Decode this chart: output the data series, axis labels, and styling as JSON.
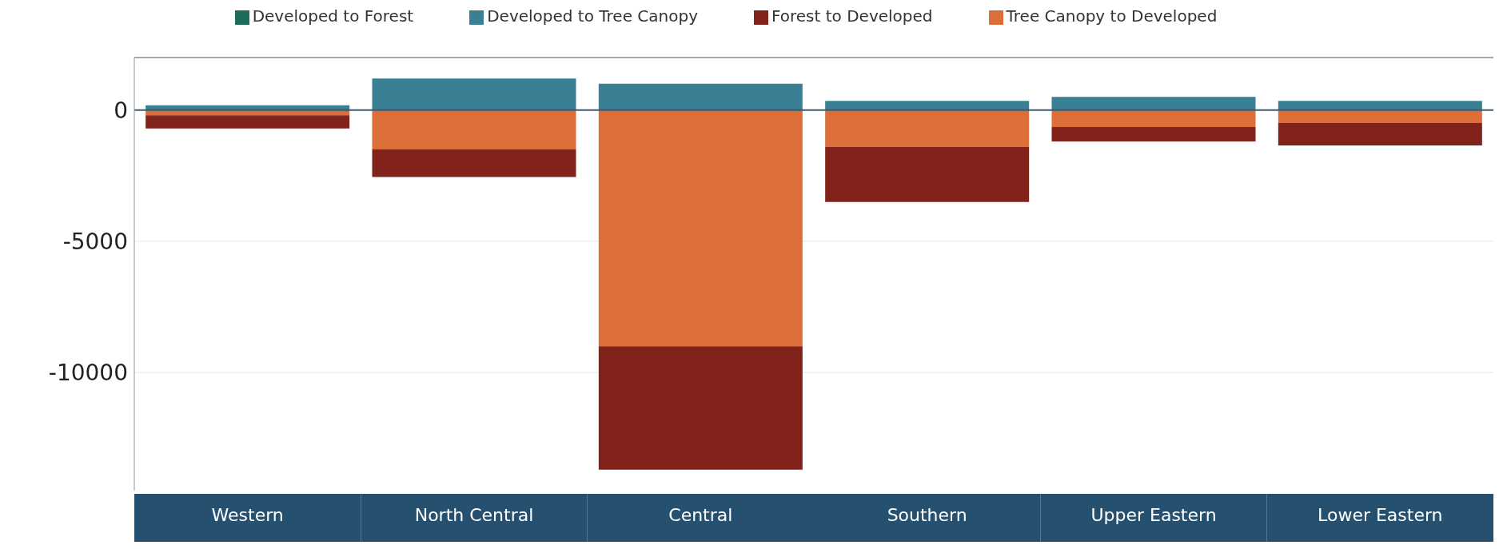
{
  "chart_data": {
    "type": "bar",
    "stacked": true,
    "categories": [
      "Western",
      "North Central",
      "Central",
      "Southern",
      "Upper Eastern",
      "Lower Eastern"
    ],
    "series": [
      {
        "name": "Tree Canopy to Developed",
        "color": "#dc6e3a",
        "values": [
          -200,
          -1500,
          -9000,
          -1400,
          -650,
          -500
        ]
      },
      {
        "name": "Forest to Developed",
        "color": "#81231b",
        "values": [
          -500,
          -1050,
          -4700,
          -2100,
          -550,
          -850
        ]
      },
      {
        "name": "Developed to Tree Canopy",
        "color": "#3a8094",
        "values": [
          180,
          1200,
          1000,
          350,
          500,
          350
        ]
      },
      {
        "name": "Developed to Forest",
        "color": "#1d6b5a",
        "values": [
          0,
          0,
          0,
          0,
          0,
          0
        ]
      }
    ],
    "ylim": [
      -14500,
      2000
    ],
    "yticks": [
      0,
      -5000,
      -10000
    ],
    "grid": "y",
    "legend": "top",
    "ref_lines": [
      {
        "axis": "y",
        "value": 0,
        "color": "#3d5a6c"
      }
    ]
  }
}
